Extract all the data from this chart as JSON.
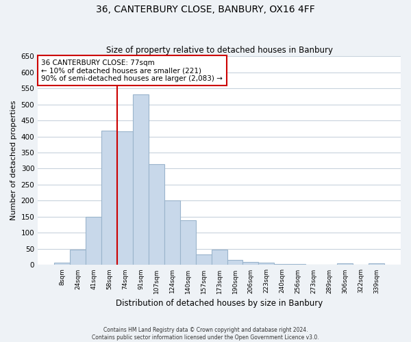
{
  "title": "36, CANTERBURY CLOSE, BANBURY, OX16 4FF",
  "subtitle": "Size of property relative to detached houses in Banbury",
  "xlabel": "Distribution of detached houses by size in Banbury",
  "ylabel": "Number of detached properties",
  "bar_labels": [
    "8sqm",
    "24sqm",
    "41sqm",
    "58sqm",
    "74sqm",
    "91sqm",
    "107sqm",
    "124sqm",
    "140sqm",
    "157sqm",
    "173sqm",
    "190sqm",
    "206sqm",
    "223sqm",
    "240sqm",
    "256sqm",
    "273sqm",
    "289sqm",
    "306sqm",
    "322sqm",
    "339sqm"
  ],
  "bar_values": [
    8,
    47,
    150,
    418,
    415,
    530,
    313,
    202,
    140,
    33,
    47,
    15,
    10,
    8,
    3,
    3,
    1,
    0,
    5,
    0,
    5
  ],
  "bar_color": "#c8d8ea",
  "bar_edge_color": "#9ab4cc",
  "red_line_x": 3.5,
  "marker_color": "#cc0000",
  "annotation_text": "36 CANTERBURY CLOSE: 77sqm\n← 10% of detached houses are smaller (221)\n90% of semi-detached houses are larger (2,083) →",
  "annotation_box_color": "#ffffff",
  "annotation_border_color": "#cc0000",
  "ylim": [
    0,
    650
  ],
  "yticks": [
    0,
    50,
    100,
    150,
    200,
    250,
    300,
    350,
    400,
    450,
    500,
    550,
    600,
    650
  ],
  "footer_line1": "Contains HM Land Registry data © Crown copyright and database right 2024.",
  "footer_line2": "Contains public sector information licensed under the Open Government Licence v3.0.",
  "background_color": "#eef2f6",
  "plot_background": "#ffffff",
  "grid_color": "#c8d2dc"
}
